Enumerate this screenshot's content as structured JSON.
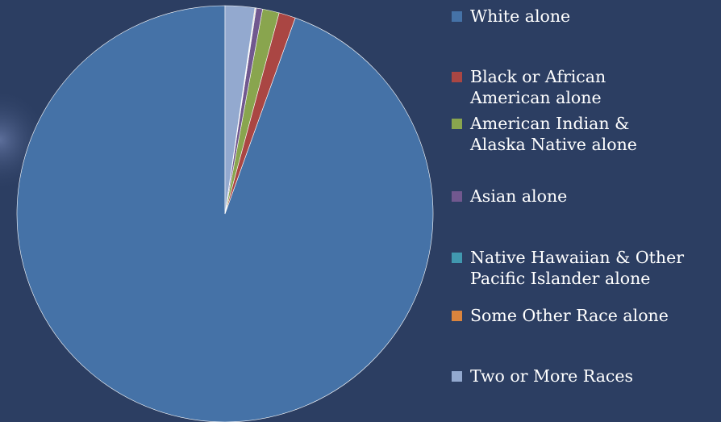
{
  "chart_data": {
    "type": "pie",
    "title": "",
    "start_angle_deg": 0,
    "direction": "clockwise",
    "slices": [
      {
        "label": "White alone",
        "value": 94.8,
        "color": "#4572a7"
      },
      {
        "label": "Black or African American alone",
        "value": 1.3,
        "color": "#aa4643"
      },
      {
        "label": "American Indian & Alaska Native alone",
        "value": 1.3,
        "color": "#89a54e"
      },
      {
        "label": "Asian alone",
        "value": 0.5,
        "color": "#71588f"
      },
      {
        "label": "Native Hawaiian & Other Pacific Islander alone",
        "value": 0.05,
        "color": "#4198af"
      },
      {
        "label": "Some Other Race alone",
        "value": 0.05,
        "color": "#db843d"
      },
      {
        "label": "Two or More Races",
        "value": 2.3,
        "color": "#93a9cf"
      }
    ],
    "legend_position": "right"
  }
}
